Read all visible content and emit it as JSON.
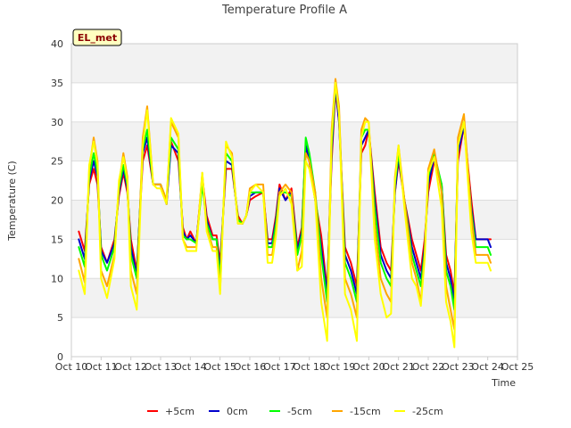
{
  "chart_data": {
    "type": "line",
    "title": "Temperature Profile A",
    "xlabel": "Time",
    "ylabel": "Temperature (C)",
    "badge": "EL_met",
    "xlim": [
      10,
      25
    ],
    "ylim": [
      0,
      40
    ],
    "x_ticks": [
      10,
      11,
      12,
      13,
      14,
      15,
      16,
      17,
      18,
      19,
      20,
      21,
      22,
      23,
      24,
      25
    ],
    "x_tick_labels": [
      "Oct 10",
      "Oct 11",
      "Oct 12",
      "Oct 13",
      "Oct 14",
      "Oct 15",
      "Oct 16",
      "Oct 17",
      "Oct 18",
      "Oct 19",
      "Oct 20",
      "Oct 21",
      "Oct 22",
      "Oct 23",
      "Oct 24",
      "Oct 25"
    ],
    "y_ticks": [
      0,
      5,
      10,
      15,
      20,
      25,
      30,
      35,
      40
    ],
    "grid": true,
    "legend_position": "bottom",
    "x": [
      10.25,
      10.45,
      10.6,
      10.75,
      10.88,
      11.0,
      11.2,
      11.45,
      11.6,
      11.75,
      11.88,
      12.0,
      12.2,
      12.4,
      12.55,
      12.75,
      12.88,
      13.0,
      13.2,
      13.35,
      13.6,
      13.75,
      13.88,
      14.0,
      14.2,
      14.4,
      14.55,
      14.75,
      14.88,
      15.0,
      15.2,
      15.4,
      15.6,
      15.75,
      15.88,
      16.0,
      16.2,
      16.45,
      16.6,
      16.75,
      16.88,
      17.0,
      17.2,
      17.4,
      17.6,
      17.75,
      17.88,
      18.0,
      18.2,
      18.4,
      18.6,
      18.75,
      18.88,
      19.0,
      19.2,
      19.4,
      19.6,
      19.75,
      19.88,
      20.0,
      20.2,
      20.4,
      20.6,
      20.75,
      20.88,
      21.0,
      21.2,
      21.45,
      21.6,
      21.75,
      21.88,
      22.0,
      22.2,
      22.45,
      22.6,
      22.75,
      22.88,
      23.0,
      23.2,
      23.45,
      23.6,
      23.75,
      23.88,
      24.0,
      24.1
    ],
    "series": [
      {
        "name": "+5cm",
        "color": "#ff0000",
        "values": [
          16.0,
          13.5,
          22.0,
          24.0,
          22.0,
          14.0,
          12.0,
          15.0,
          20.5,
          23.5,
          21.0,
          15.0,
          11.0,
          25.0,
          27.0,
          22.0,
          22.0,
          22.0,
          19.5,
          27.5,
          25.0,
          16.5,
          15.0,
          16.0,
          14.5,
          23.0,
          18.0,
          15.5,
          15.5,
          12.0,
          24.0,
          24.0,
          18.0,
          17.0,
          18.0,
          20.0,
          20.5,
          21.0,
          15.0,
          15.0,
          18.0,
          22.0,
          20.0,
          21.5,
          14.0,
          16.5,
          27.0,
          25.0,
          20.0,
          15.5,
          8.5,
          25.0,
          34.0,
          30.0,
          14.0,
          12.0,
          9.0,
          26.0,
          27.0,
          29.0,
          21.0,
          14.0,
          12.0,
          11.0,
          21.0,
          25.0,
          20.0,
          15.0,
          13.0,
          11.0,
          15.0,
          21.0,
          25.0,
          22.0,
          13.0,
          11.0,
          8.0,
          25.0,
          29.5,
          20.0,
          15.0,
          15.0,
          15.0,
          15.0,
          15.0
        ]
      },
      {
        "name": "0cm",
        "color": "#0000cc",
        "values": [
          15.0,
          12.5,
          22.5,
          25.0,
          23.0,
          13.5,
          12.0,
          14.5,
          21.0,
          24.0,
          21.5,
          14.0,
          10.5,
          26.0,
          28.0,
          22.0,
          22.0,
          22.0,
          19.5,
          27.0,
          26.0,
          16.0,
          15.0,
          15.5,
          14.5,
          22.5,
          17.5,
          15.0,
          15.0,
          11.0,
          25.0,
          24.5,
          17.5,
          17.0,
          18.0,
          20.5,
          21.0,
          21.0,
          14.5,
          14.5,
          17.5,
          21.5,
          20.0,
          21.0,
          13.5,
          16.0,
          27.0,
          25.0,
          20.0,
          14.0,
          8.0,
          26.0,
          34.5,
          30.0,
          13.0,
          11.0,
          8.0,
          27.0,
          28.0,
          29.0,
          20.0,
          13.0,
          11.0,
          10.0,
          21.0,
          25.5,
          20.0,
          14.0,
          12.0,
          10.0,
          14.0,
          22.0,
          25.5,
          22.0,
          12.0,
          10.0,
          7.0,
          26.0,
          29.5,
          19.0,
          15.0,
          15.0,
          15.0,
          15.0,
          14.0
        ]
      },
      {
        "name": "-5cm",
        "color": "#00ff00",
        "values": [
          14.0,
          11.5,
          23.0,
          26.0,
          23.5,
          13.0,
          11.0,
          14.0,
          21.5,
          24.5,
          22.0,
          13.0,
          10.0,
          26.5,
          29.0,
          22.0,
          22.0,
          22.0,
          20.0,
          28.0,
          26.5,
          15.5,
          15.0,
          15.0,
          14.5,
          22.0,
          17.0,
          15.0,
          15.0,
          10.0,
          26.0,
          25.0,
          17.5,
          17.0,
          18.0,
          21.0,
          21.0,
          21.0,
          14.0,
          14.0,
          17.0,
          21.0,
          21.0,
          20.5,
          13.0,
          15.5,
          28.0,
          26.0,
          21.0,
          13.0,
          7.0,
          27.0,
          35.0,
          31.0,
          12.0,
          10.0,
          7.0,
          28.0,
          29.0,
          29.0,
          19.0,
          12.0,
          10.0,
          9.0,
          22.0,
          26.0,
          20.0,
          13.0,
          11.0,
          9.0,
          13.5,
          23.0,
          26.0,
          22.0,
          11.0,
          9.0,
          6.0,
          27.0,
          30.0,
          18.5,
          14.0,
          14.0,
          14.0,
          14.0,
          13.0
        ]
      },
      {
        "name": "-15cm",
        "color": "#ffa500",
        "values": [
          12.5,
          9.5,
          24.0,
          28.0,
          25.0,
          11.0,
          9.0,
          13.0,
          22.0,
          26.0,
          23.0,
          11.0,
          8.0,
          28.0,
          32.0,
          22.0,
          22.0,
          22.0,
          20.0,
          30.0,
          28.0,
          15.0,
          14.0,
          14.0,
          14.0,
          23.5,
          16.5,
          14.0,
          14.0,
          8.5,
          27.0,
          26.0,
          17.0,
          17.0,
          18.0,
          21.5,
          22.0,
          22.0,
          13.0,
          13.0,
          16.0,
          21.0,
          22.0,
          21.0,
          11.0,
          13.5,
          26.0,
          25.0,
          21.0,
          10.0,
          5.0,
          29.0,
          35.5,
          32.0,
          10.0,
          8.0,
          5.0,
          29.0,
          30.5,
          30.0,
          17.0,
          10.0,
          8.0,
          7.0,
          23.0,
          27.0,
          20.0,
          12.0,
          10.0,
          7.0,
          13.0,
          24.0,
          26.5,
          21.0,
          9.0,
          6.0,
          3.5,
          28.0,
          31.0,
          18.0,
          13.0,
          13.0,
          13.0,
          13.0,
          12.0
        ]
      },
      {
        "name": "-25cm",
        "color": "#ffff00",
        "values": [
          11.0,
          8.0,
          24.5,
          27.5,
          24.5,
          10.0,
          7.5,
          12.5,
          22.5,
          25.5,
          22.5,
          9.0,
          6.0,
          27.0,
          31.5,
          22.0,
          21.5,
          21.5,
          19.5,
          30.5,
          28.5,
          15.0,
          13.5,
          13.5,
          13.5,
          23.5,
          16.0,
          13.5,
          13.5,
          8.0,
          27.5,
          25.5,
          17.0,
          17.0,
          18.0,
          21.0,
          22.0,
          21.0,
          12.0,
          12.0,
          15.5,
          20.5,
          21.5,
          19.5,
          11.0,
          11.5,
          25.0,
          24.0,
          20.0,
          7.0,
          2.0,
          28.0,
          35.0,
          31.0,
          8.0,
          6.0,
          2.0,
          28.0,
          30.0,
          30.0,
          15.0,
          8.0,
          5.0,
          5.5,
          22.5,
          27.0,
          19.0,
          10.0,
          9.0,
          6.5,
          12.5,
          23.5,
          25.5,
          19.0,
          7.0,
          4.5,
          1.2,
          27.0,
          30.0,
          16.0,
          12.0,
          12.0,
          12.0,
          12.0,
          11.0
        ]
      }
    ]
  }
}
